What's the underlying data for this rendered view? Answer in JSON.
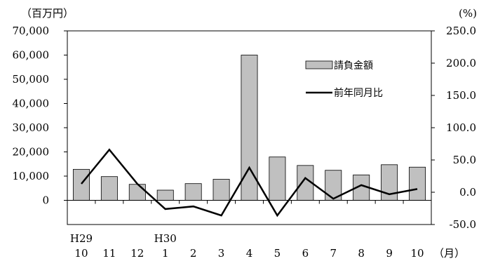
{
  "chart_data": {
    "type": "bar+line",
    "left_unit": "（百万円）",
    "right_unit": "(%)",
    "x_unit": "（月）",
    "categories": [
      "10",
      "11",
      "12",
      "1",
      "2",
      "3",
      "4",
      "5",
      "6",
      "7",
      "8",
      "9",
      "10"
    ],
    "year_labels": [
      {
        "index": 0,
        "label": "H29"
      },
      {
        "index": 3,
        "label": "H30"
      }
    ],
    "left_axis": {
      "ylim": [
        -10000,
        70000
      ],
      "ticks": [
        {
          "value": 70000,
          "label": "70,000"
        },
        {
          "value": 60000,
          "label": "60,000"
        },
        {
          "value": 50000,
          "label": "50,000"
        },
        {
          "value": 40000,
          "label": "40,000"
        },
        {
          "value": 30000,
          "label": "30,000"
        },
        {
          "value": 20000,
          "label": "20,000"
        },
        {
          "value": 10000,
          "label": "10,000"
        },
        {
          "value": 0,
          "label": "0"
        }
      ]
    },
    "right_axis": {
      "ylim": [
        -50,
        250
      ],
      "ticks": [
        {
          "value": 250,
          "label": "250.0"
        },
        {
          "value": 200,
          "label": "200.0"
        },
        {
          "value": 150,
          "label": "150.0"
        },
        {
          "value": 100,
          "label": "100.0"
        },
        {
          "value": 50,
          "label": "50.0"
        },
        {
          "value": 0,
          "label": "0.0"
        },
        {
          "value": -50,
          "label": "-50.0"
        }
      ]
    },
    "series": [
      {
        "name": "請負金額",
        "type": "bar",
        "axis": "left",
        "color": "#c0c0c0",
        "values": [
          12800,
          9800,
          6600,
          4200,
          6900,
          8700,
          60000,
          17900,
          14400,
          12400,
          10500,
          14700,
          13700
        ]
      },
      {
        "name": "前年同月比",
        "type": "line",
        "axis": "right",
        "color": "#000000",
        "values": [
          13,
          66,
          13,
          -26,
          -22,
          -36,
          38,
          -36,
          22,
          -10,
          11,
          -3,
          5
        ]
      }
    ],
    "legend_position": "upper-right inside plot"
  }
}
